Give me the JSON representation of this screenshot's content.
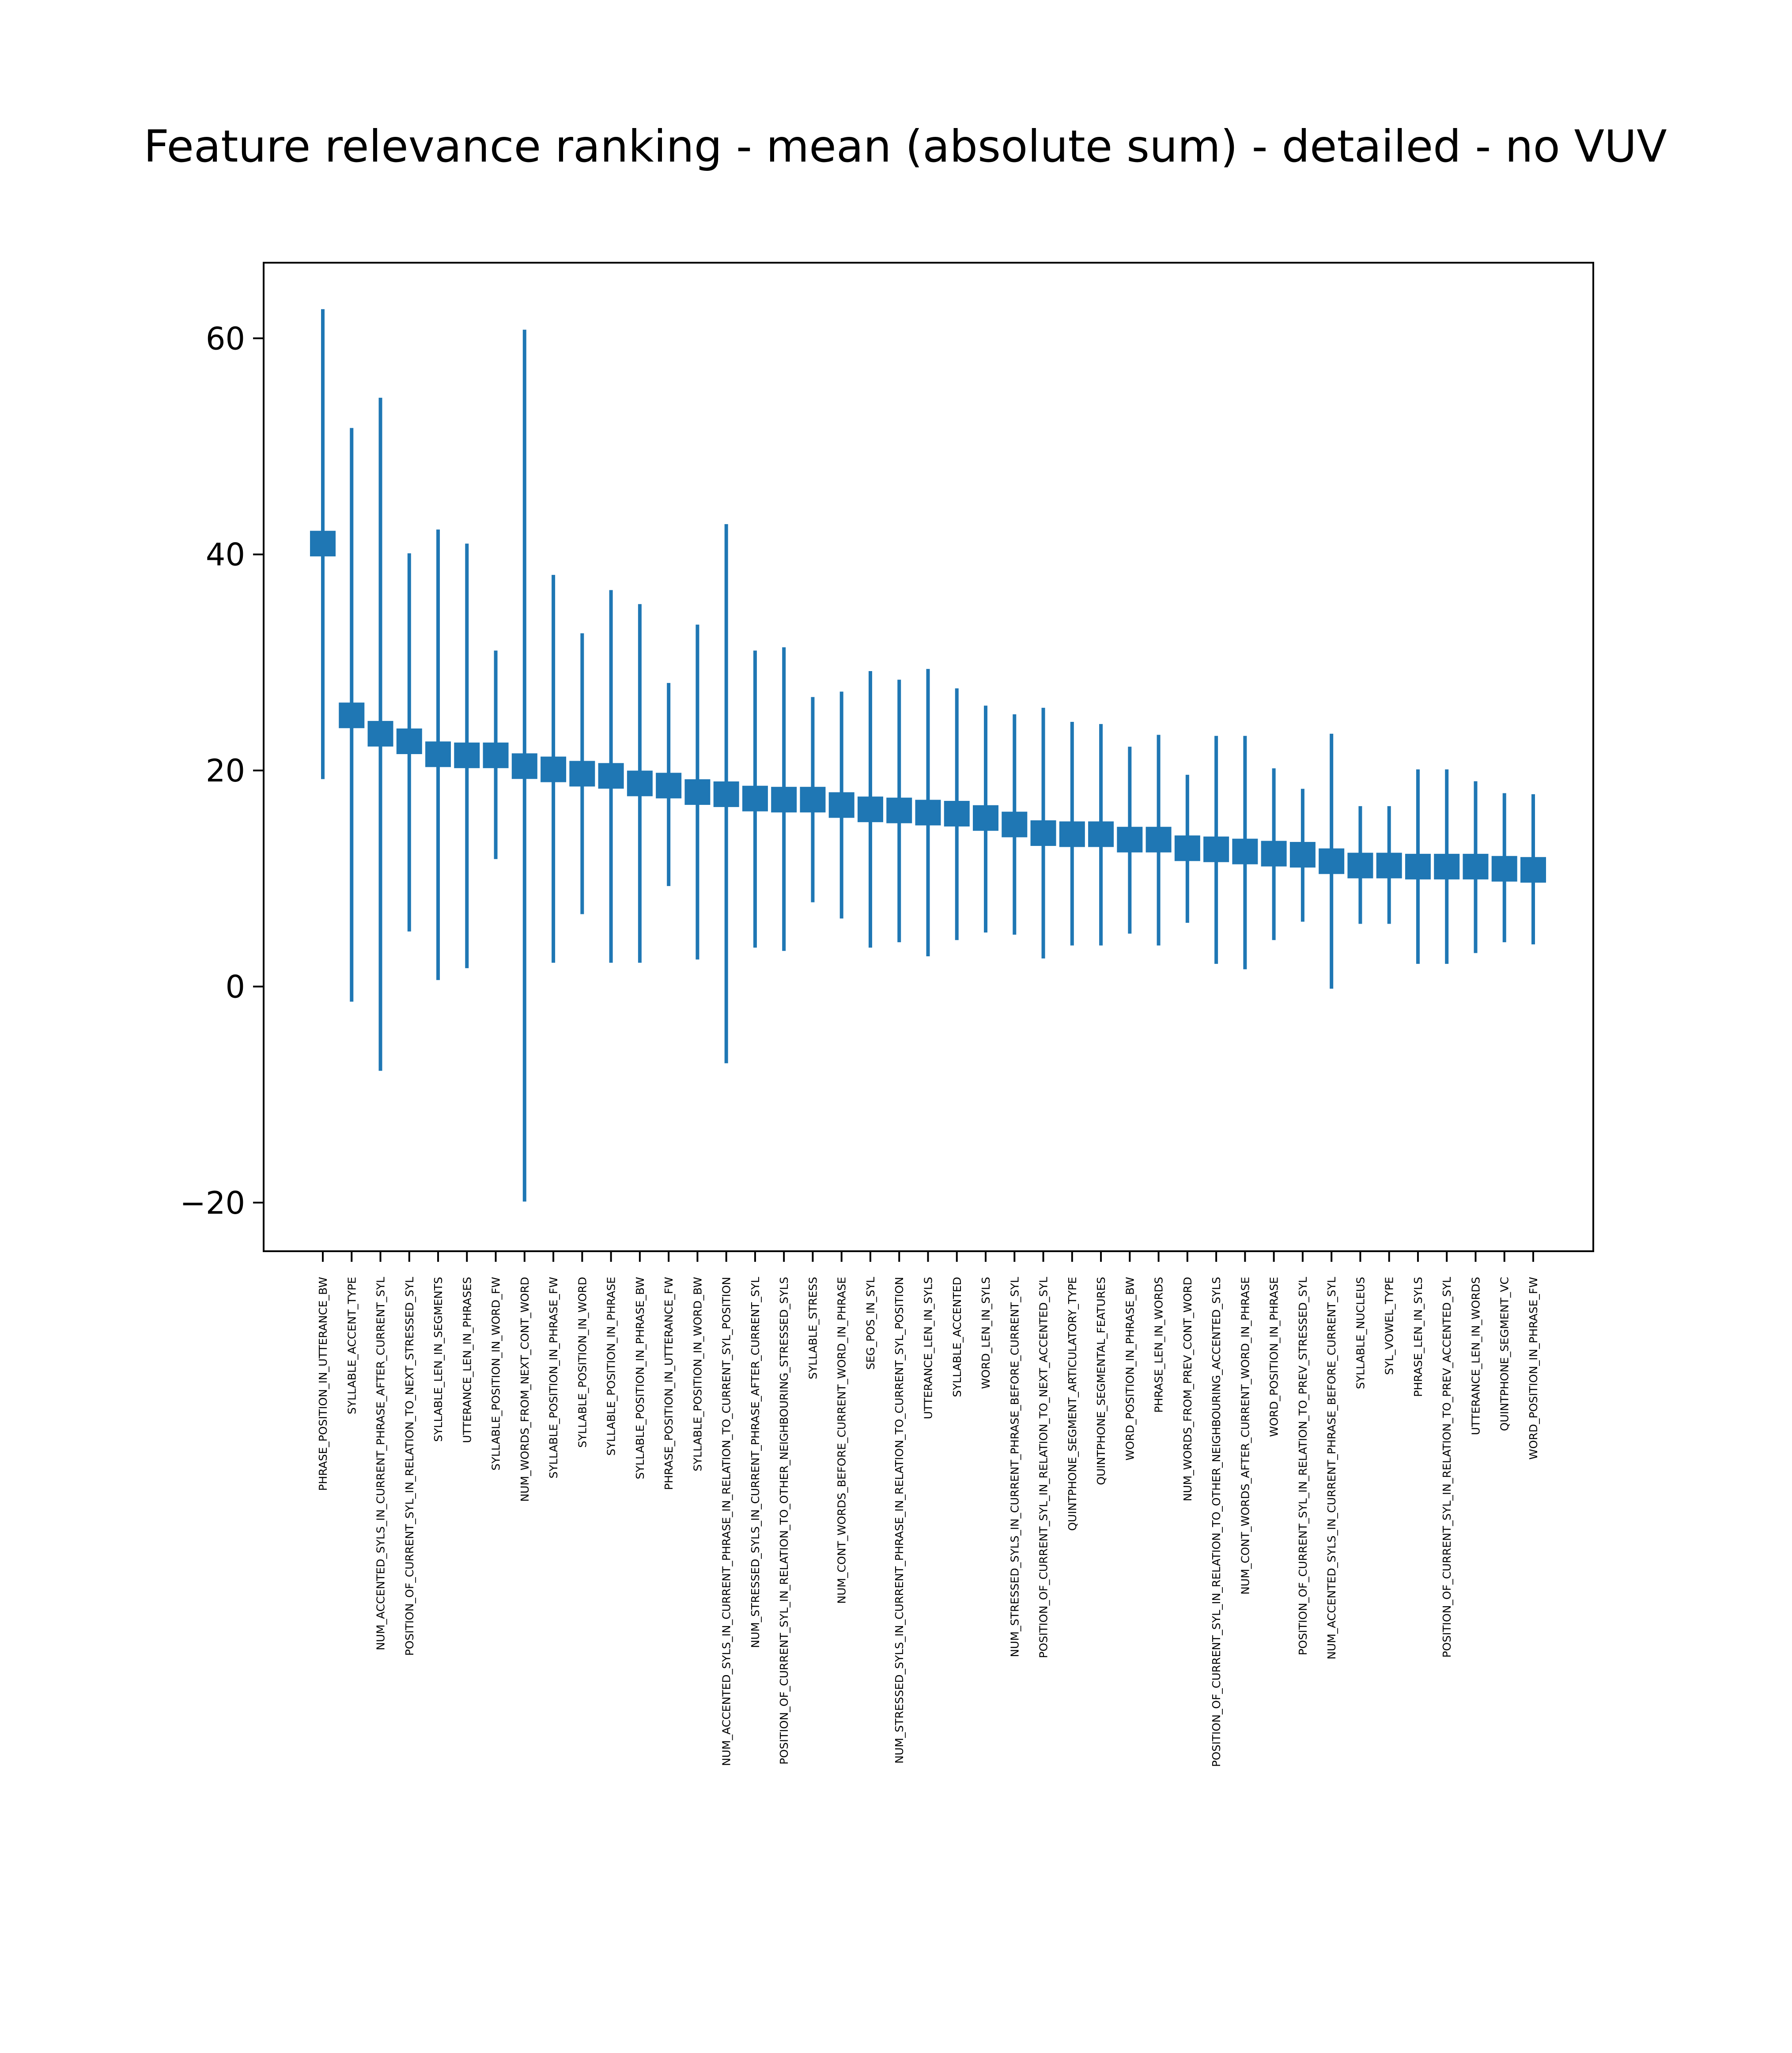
{
  "chart_data": {
    "type": "errorbar",
    "title": "Feature relevance ranking - mean (absolute sum) - detailed - no VUV",
    "xlabel": "",
    "ylabel": "",
    "ylim": [
      -24.5,
      67
    ],
    "yticks": [
      -20,
      0,
      20,
      40,
      60
    ],
    "ytick_labels": [
      "−20",
      "0",
      "20",
      "40",
      "60"
    ],
    "grid": false,
    "legend": "none",
    "color": "#1f77b4",
    "categories": [
      "PHRASE_POSITION_IN_UTTERANCE_BW",
      "SYLLABLE_ACCENT_TYPE",
      "NUM_ACCENTED_SYLS_IN_CURRENT_PHRASE_AFTER_CURRENT_SYL",
      "POSITION_OF_CURRENT_SYL_IN_RELATION_TO_NEXT_STRESSED_SYL",
      "SYLLABLE_LEN_IN_SEGMENTS",
      "UTTERANCE_LEN_IN_PHRASES",
      "SYLLABLE_POSITION_IN_WORD_FW",
      "NUM_WORDS_FROM_NEXT_CONT_WORD",
      "SYLLABLE_POSITION_IN_PHRASE_FW",
      "SYLLABLE_POSITION_IN_WORD",
      "SYLLABLE_POSITION_IN_PHRASE",
      "SYLLABLE_POSITION_IN_PHRASE_BW",
      "PHRASE_POSITION_IN_UTTERANCE_FW",
      "SYLLABLE_POSITION_IN_WORD_BW",
      "NUM_ACCENTED_SYLS_IN_CURRENT_PHRASE_IN_RELATION_TO_CURRENT_SYL_POSITION",
      "NUM_STRESSED_SYLS_IN_CURRENT_PHRASE_AFTER_CURRENT_SYL",
      "POSITION_OF_CURRENT_SYL_IN_RELATION_TO_OTHER_NEIGHBOURING_STRESSED_SYLS",
      "SYLLABLE_STRESS",
      "NUM_CONT_WORDS_BEFORE_CURRENT_WORD_IN_PHRASE",
      "SEG_POS_IN_SYL",
      "NUM_STRESSED_SYLS_IN_CURRENT_PHRASE_IN_RELATION_TO_CURRENT_SYL_POSITION",
      "UTTERANCE_LEN_IN_SYLS",
      "SYLLABLE_ACCENTED",
      "WORD_LEN_IN_SYLS",
      "NUM_STRESSED_SYLS_IN_CURRENT_PHRASE_BEFORE_CURRENT_SYL",
      "POSITION_OF_CURRENT_SYL_IN_RELATION_TO_NEXT_ACCENTED_SYL",
      "QUINTPHONE_SEGMENT_ARTICULATORY_TYPE",
      "QUINTPHONE_SEGMENTAL_FEATURES",
      "WORD_POSITION_IN_PHRASE_BW",
      "PHRASE_LEN_IN_WORDS",
      "NUM_WORDS_FROM_PREV_CONT_WORD",
      "POSITION_OF_CURRENT_SYL_IN_RELATION_TO_OTHER_NEIGHBOURING_ACCENTED_SYLS",
      "NUM_CONT_WORDS_AFTER_CURRENT_WORD_IN_PHRASE",
      "WORD_POSITION_IN_PHRASE",
      "POSITION_OF_CURRENT_SYL_IN_RELATION_TO_PREV_STRESSED_SYL",
      "NUM_ACCENTED_SYLS_IN_CURRENT_PHRASE_BEFORE_CURRENT_SYL",
      "SYLLABLE_NUCLEUS",
      "SYL_VOWEL_TYPE",
      "PHRASE_LEN_IN_SYLS",
      "POSITION_OF_CURRENT_SYL_IN_RELATION_TO_PREV_ACCENTED_SYL",
      "UTTERANCE_LEN_IN_WORDS",
      "QUINTPHONE_SEGMENT_VC",
      "WORD_POSITION_IN_PHRASE_FW"
    ],
    "mean": [
      41.0,
      25.1,
      23.4,
      22.7,
      21.5,
      21.4,
      21.4,
      20.4,
      20.1,
      19.7,
      19.5,
      18.8,
      18.6,
      18.0,
      17.8,
      17.4,
      17.3,
      17.3,
      16.8,
      16.4,
      16.3,
      16.1,
      16.0,
      15.6,
      15.0,
      14.2,
      14.1,
      14.1,
      13.6,
      13.6,
      12.8,
      12.7,
      12.5,
      12.3,
      12.2,
      11.6,
      11.2,
      11.2,
      11.1,
      11.1,
      11.1,
      10.9,
      10.8
    ],
    "lower": [
      19.2,
      -1.4,
      -7.8,
      5.1,
      0.6,
      1.7,
      11.8,
      -19.9,
      2.2,
      6.7,
      2.2,
      2.2,
      9.3,
      2.5,
      -7.1,
      3.6,
      3.3,
      7.8,
      6.3,
      3.6,
      4.1,
      2.8,
      4.3,
      5.0,
      4.8,
      2.6,
      3.8,
      3.8,
      4.9,
      3.8,
      5.9,
      2.1,
      1.6,
      4.3,
      6.0,
      -0.2,
      5.8,
      5.8,
      2.1,
      2.1,
      3.1,
      4.1,
      3.9
    ],
    "upper": [
      62.7,
      51.7,
      54.5,
      40.1,
      42.3,
      41.0,
      31.1,
      60.8,
      38.1,
      32.7,
      36.7,
      35.4,
      28.1,
      33.5,
      42.8,
      31.1,
      31.4,
      26.8,
      27.3,
      29.2,
      28.4,
      29.4,
      27.6,
      26.0,
      25.2,
      25.8,
      24.5,
      24.3,
      22.2,
      23.3,
      19.6,
      23.2,
      23.2,
      20.2,
      18.3,
      23.4,
      16.7,
      16.7,
      20.1,
      20.1,
      19.0,
      17.9,
      17.8
    ]
  }
}
